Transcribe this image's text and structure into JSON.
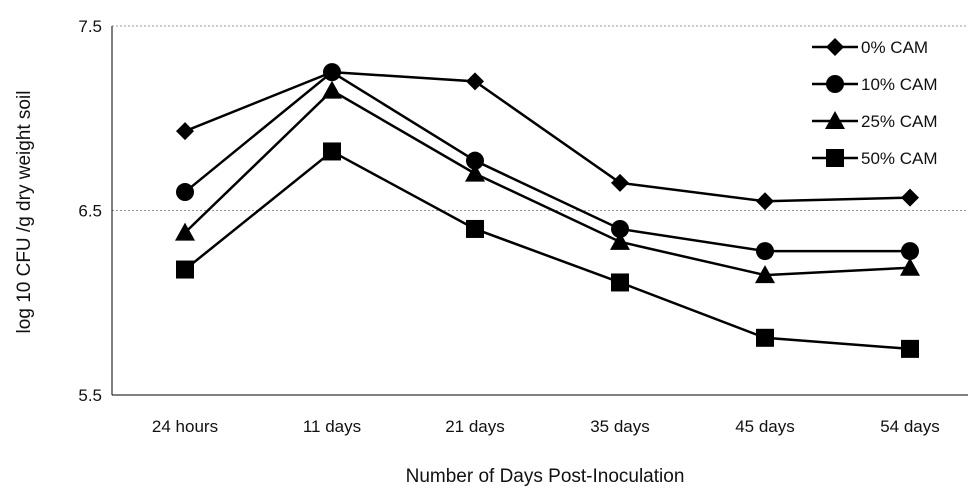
{
  "chart_data": {
    "type": "line",
    "title": "",
    "xlabel": "Number of Days Post-Inoculation",
    "ylabel": "log 10 CFU /g dry weight soil",
    "categories": [
      "24 hours",
      "11 days",
      "21 days",
      "35 days",
      "45 days",
      "54 days"
    ],
    "y_ticks": [
      "5.5",
      "6.5",
      "7.5"
    ],
    "ylim": [
      5.5,
      7.5
    ],
    "grid": "horizontal dotted at 6.5 and 7.5",
    "legend_position": "top-right",
    "series": [
      {
        "name": "0% CAM",
        "marker": "diamond",
        "values": [
          6.93,
          7.25,
          7.2,
          6.65,
          6.55,
          6.57
        ]
      },
      {
        "name": "10% CAM",
        "marker": "circle",
        "values": [
          6.6,
          7.25,
          6.77,
          6.4,
          6.28,
          6.28
        ]
      },
      {
        "name": "25% CAM",
        "marker": "triangle",
        "values": [
          6.38,
          7.15,
          6.7,
          6.33,
          6.15,
          6.19
        ]
      },
      {
        "name": "50% CAM",
        "marker": "square",
        "values": [
          6.18,
          6.82,
          6.4,
          6.11,
          5.81,
          5.75
        ]
      }
    ],
    "colors": {
      "line": "#000000",
      "grid": "#9a9a9a",
      "axis": "#000000"
    }
  }
}
